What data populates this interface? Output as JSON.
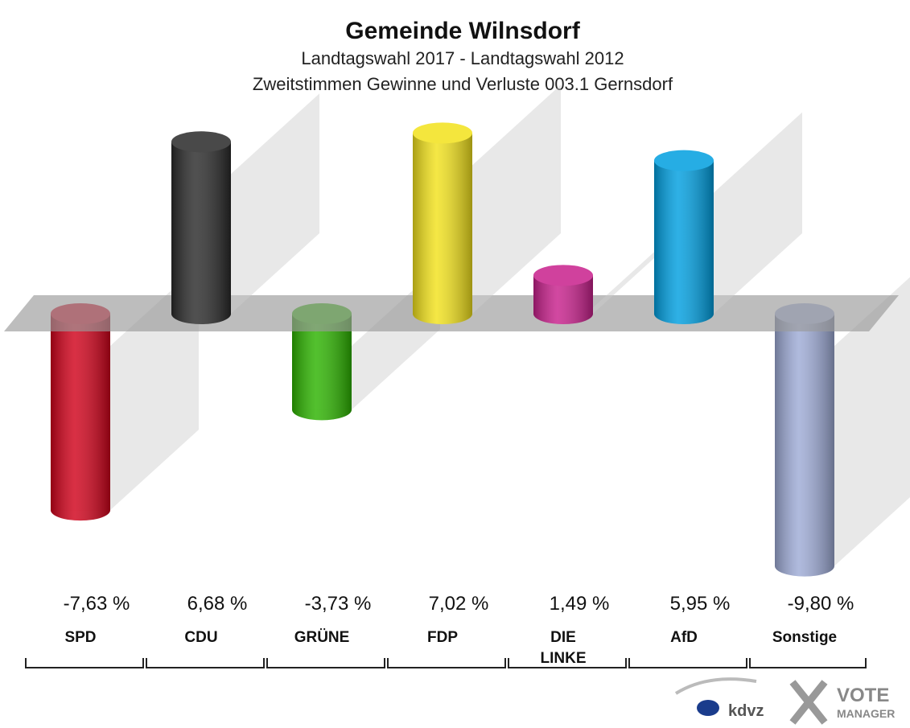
{
  "chart_data": {
    "type": "bar",
    "title": "Gemeinde Wilnsdorf",
    "subtitle": [
      "Landtagswahl 2017 - Landtagswahl 2012",
      "Zweitstimmen Gewinne und Verluste 003.1 Gernsdorf"
    ],
    "categories": [
      "SPD",
      "CDU",
      "GRÜNE",
      "FDP",
      "DIE LINKE",
      "AfD",
      "Sonstige"
    ],
    "values": [
      -7.63,
      6.68,
      -3.73,
      7.02,
      1.49,
      5.95,
      -9.8
    ],
    "value_labels": [
      "-7,63 %",
      "6,68 %",
      "-3,73 %",
      "7,02 %",
      "1,49 %",
      "5,95 %",
      "-9,80 %"
    ],
    "colors": [
      "#d0021b",
      "#2a2a2a",
      "#2db300",
      "#f2e21c",
      "#c8208c",
      "#009fe0",
      "#9eabd6"
    ]
  },
  "footer": {
    "logo_left": "kdvz",
    "logo_right": [
      "VOTE",
      "MANAGER"
    ]
  }
}
